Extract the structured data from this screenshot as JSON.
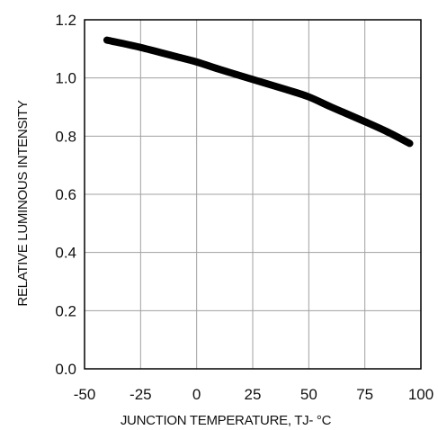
{
  "chart_data": {
    "type": "line",
    "title": "",
    "xlabel": "JUNCTION TEMPERATURE, TJ- °C",
    "ylabel": "RELATIVE LUMINOUS INTENSITY",
    "xlim": [
      -50,
      100
    ],
    "ylim": [
      0,
      1.2
    ],
    "xticks": [
      "-50",
      "-25",
      "0",
      "25",
      "50",
      "75",
      "100"
    ],
    "yticks": [
      "0.0",
      "0.2",
      "0.4",
      "0.6",
      "0.8",
      "1.0",
      "1.2"
    ],
    "grid": true,
    "legend": "none",
    "line_color": "#000000",
    "grid_color": "#a0a0a0",
    "series": [
      {
        "x": [
          -40,
          -25,
          -10,
          0,
          10,
          25,
          40,
          50,
          60,
          75,
          85,
          95
        ],
        "y": [
          1.13,
          1.105,
          1.075,
          1.055,
          1.03,
          0.995,
          0.96,
          0.935,
          0.9,
          0.85,
          0.815,
          0.775
        ]
      }
    ]
  }
}
